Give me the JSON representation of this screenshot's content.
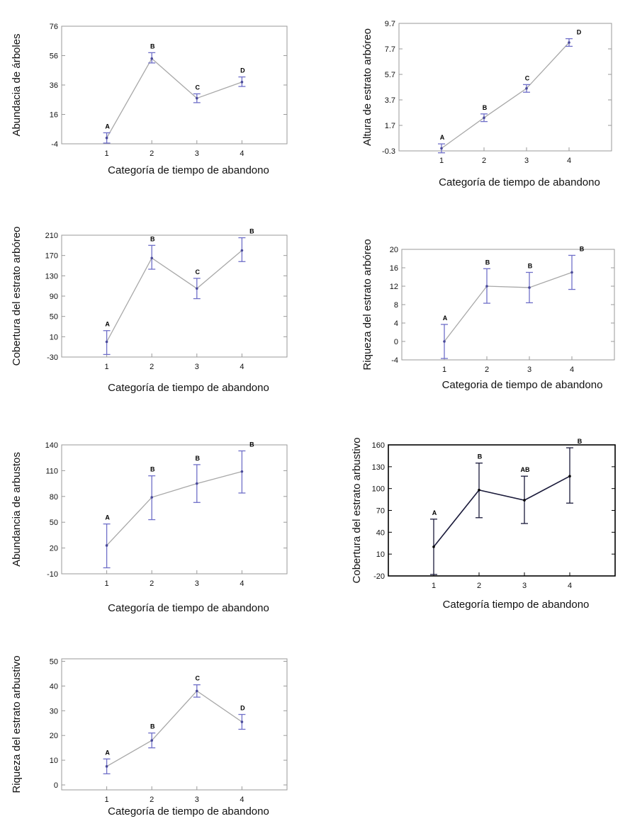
{
  "colors": {
    "errorbar": "#6f6fc8",
    "line": "#a8a8a8",
    "point": "#4a4a9a",
    "frame": "#9a9a9a",
    "dark": "#1a1a3a"
  },
  "chart_data": [
    {
      "type": "line",
      "xlabel": "Categoría de tiempo de abandono",
      "ylabel": "Abundacia de árboles",
      "x": [
        "1",
        "2",
        "3",
        "4"
      ],
      "series": [
        {
          "values": [
            0,
            54,
            27,
            38
          ],
          "lower": [
            -3.5,
            51,
            24,
            35
          ],
          "upper": [
            3.5,
            58,
            30,
            41.5
          ]
        }
      ],
      "letters": [
        "A",
        "B",
        "C",
        "D"
      ],
      "ylim": [
        -4,
        76
      ],
      "yticks": [
        "-4",
        "16",
        "36",
        "56",
        "76"
      ],
      "xlim": [
        0,
        5
      ],
      "style": "blue"
    },
    {
      "type": "line",
      "xlabel": "Categoría de tiempo de abandono",
      "ylabel": "Altura de estrato arbóreo",
      "x": [
        "1",
        "2",
        "3",
        "4"
      ],
      "series": [
        {
          "values": [
            -0.1,
            2.3,
            4.6,
            8.2
          ],
          "lower": [
            -0.45,
            2.0,
            4.3,
            7.9
          ],
          "upper": [
            0.25,
            2.6,
            4.9,
            8.5
          ]
        }
      ],
      "letters": [
        "A",
        "B",
        "C",
        "D"
      ],
      "ylim": [
        -0.3,
        9.7
      ],
      "yticks": [
        "-0.3",
        "1.7",
        "3.7",
        "5.7",
        "7.7",
        "9.7"
      ],
      "xlim": [
        0,
        5
      ],
      "style": "blue"
    },
    {
      "type": "line",
      "xlabel": "Categoría de tiempo de abandono",
      "ylabel": "Cobertura del estrato arbóreo",
      "x": [
        "1",
        "2",
        "3",
        "4"
      ],
      "series": [
        {
          "values": [
            0,
            165,
            105,
            180
          ],
          "lower": [
            -25,
            143,
            85,
            158
          ],
          "upper": [
            22,
            190,
            125,
            205
          ]
        }
      ],
      "letters": [
        "A",
        "B",
        "C",
        "B"
      ],
      "ylim": [
        -30,
        210
      ],
      "yticks": [
        "-30",
        "10",
        "50",
        "90",
        "130",
        "170",
        "210"
      ],
      "xlim": [
        0,
        5
      ],
      "style": "blue"
    },
    {
      "type": "line",
      "xlabel": "Categoria de tiempo de abandono",
      "ylabel": "Riqueza del estrato arbóreo",
      "x": [
        "1",
        "2",
        "3",
        "4"
      ],
      "series": [
        {
          "values": [
            0,
            12,
            11.7,
            15
          ],
          "lower": [
            -3.7,
            8.3,
            8.4,
            11.3
          ],
          "upper": [
            3.7,
            15.8,
            15,
            18.7
          ]
        }
      ],
      "letters": [
        "A",
        "B",
        "B",
        "B"
      ],
      "ylim": [
        -4,
        20
      ],
      "yticks": [
        "-4",
        "0",
        "4",
        "8",
        "12",
        "16",
        "20"
      ],
      "xlim": [
        0,
        5
      ],
      "style": "blue"
    },
    {
      "type": "line",
      "xlabel": "Categoría de tiempo de abandono",
      "ylabel": "Abundancia de arbustos",
      "x": [
        "1",
        "2",
        "3",
        "4"
      ],
      "series": [
        {
          "values": [
            23,
            79,
            95,
            109
          ],
          "lower": [
            -3,
            53,
            73,
            84
          ],
          "upper": [
            48,
            104,
            117,
            133
          ]
        }
      ],
      "letters": [
        "A",
        "B",
        "B",
        "B"
      ],
      "ylim": [
        -10,
        140
      ],
      "yticks": [
        "-10",
        "20",
        "50",
        "80",
        "110",
        "140"
      ],
      "xlim": [
        0,
        5
      ],
      "style": "blue"
    },
    {
      "type": "line",
      "xlabel": "Categoría tiempo de abandono",
      "ylabel": "Cobertura del estrato arbustivo",
      "x": [
        "1",
        "2",
        "3",
        "4"
      ],
      "series": [
        {
          "values": [
            20,
            98,
            84,
            117
          ],
          "lower": [
            -18,
            60,
            52,
            80
          ],
          "upper": [
            58,
            135,
            117,
            156
          ]
        }
      ],
      "letters": [
        "A",
        "B",
        "AB",
        "B"
      ],
      "ylim": [
        -20,
        160
      ],
      "yticks": [
        "-20",
        "10",
        "40",
        "70",
        "100",
        "130",
        "160"
      ],
      "xlim": [
        0,
        5
      ],
      "style": "dark"
    },
    {
      "type": "line",
      "xlabel": "Categoría de tiempo de abandono",
      "ylabel": "Riqueza del estrato arbustivo",
      "x": [
        "1",
        "2",
        "3",
        "4"
      ],
      "series": [
        {
          "values": [
            7.5,
            18,
            38,
            25.5
          ],
          "lower": [
            4.5,
            15,
            35.5,
            22.5
          ],
          "upper": [
            10.5,
            21,
            40.5,
            28.5
          ]
        }
      ],
      "letters": [
        "A",
        "B",
        "C",
        "D"
      ],
      "ylim": [
        -2,
        51
      ],
      "yticks": [
        "0",
        "10",
        "20",
        "30",
        "40",
        "50"
      ],
      "xlim": [
        0,
        5
      ],
      "style": "blue"
    }
  ]
}
